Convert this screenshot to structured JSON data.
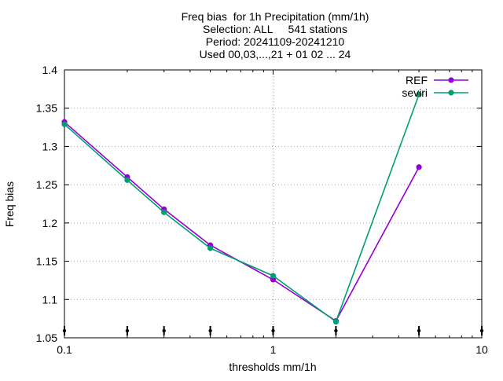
{
  "chart_data": {
    "type": "line",
    "title_lines": [
      "Freq bias  for 1h Precipitation (mm/1h)",
      "Selection: ALL     541 stations",
      "Period: 20241109-20241210",
      "Used 00,03,...,21 + 01 02 ... 24"
    ],
    "xlabel": "thresholds mm/1h",
    "ylabel": "Freq bias",
    "x_scale": "log",
    "xlim": [
      0.1,
      10
    ],
    "ylim": [
      1.05,
      1.4
    ],
    "x_ticks": [
      0.1,
      1,
      10
    ],
    "x_tick_labels": [
      "0.1",
      "1",
      "10"
    ],
    "y_ticks": [
      1.05,
      1.1,
      1.15,
      1.2,
      1.25,
      1.3,
      1.35,
      1.4
    ],
    "y_tick_labels": [
      "1.05",
      "1.1",
      "1.15",
      "1.2",
      "1.25",
      "1.3",
      "1.35",
      "1.4"
    ],
    "grid": "dotted",
    "legend_position": "top-right",
    "x": [
      0.1,
      0.2,
      0.3,
      0.5,
      1,
      2,
      5
    ],
    "series": [
      {
        "name": "REF",
        "color": "#9400d3",
        "values": [
          1.332,
          1.26,
          1.218,
          1.171,
          1.126,
          1.072,
          1.273
        ]
      },
      {
        "name": "seviri",
        "color": "#009e73",
        "values": [
          1.329,
          1.256,
          1.214,
          1.167,
          1.131,
          1.071,
          1.368
        ]
      }
    ],
    "station_marks_x": [
      0.1,
      0.2,
      0.3,
      0.5,
      1,
      2,
      5,
      10
    ]
  }
}
